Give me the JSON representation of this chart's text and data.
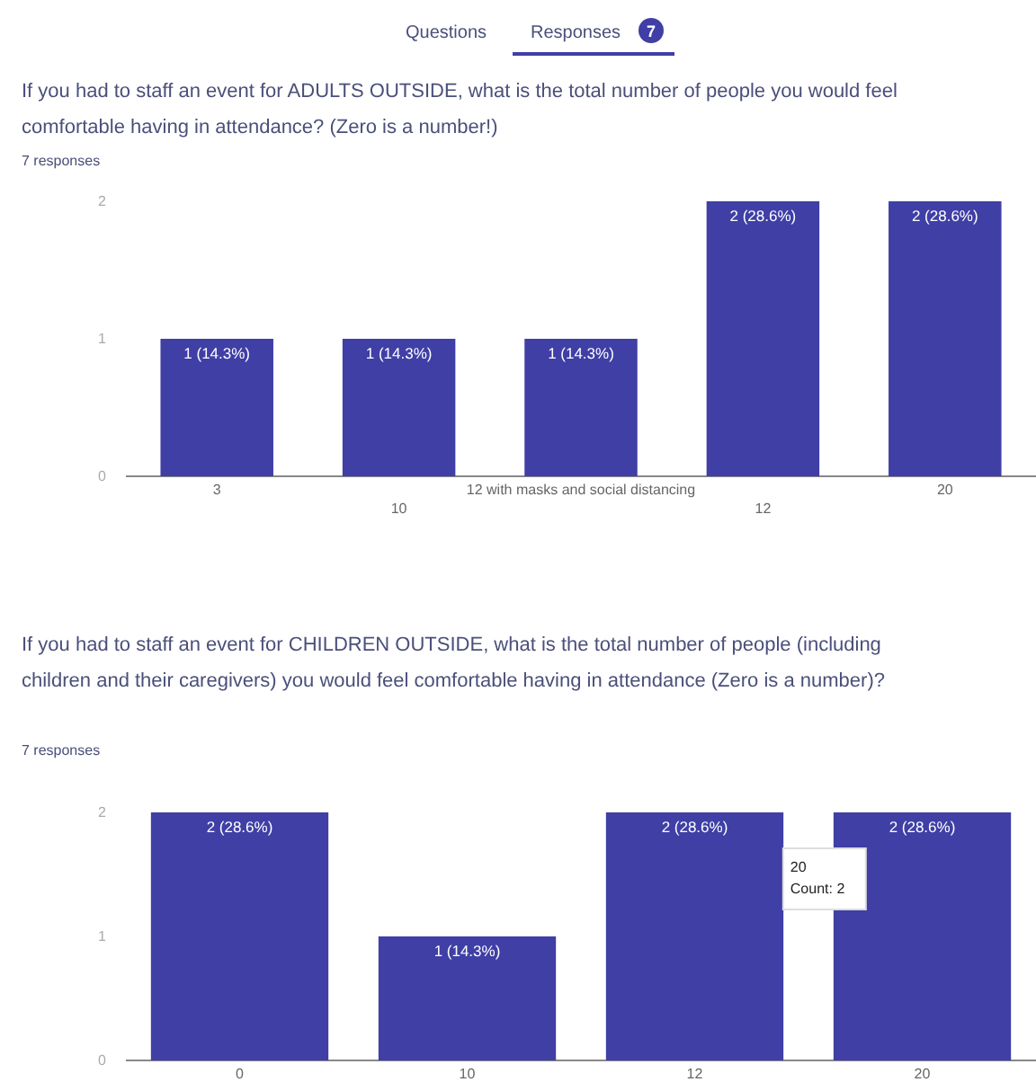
{
  "chart_data": [
    {
      "type": "bar",
      "title": "If you had to staff an event for ADULTS OUTSIDE, what is the total number of people you would feel comfortable having in attendance? (Zero is a number!)",
      "subtitle": "7 responses",
      "annotations": [
        "Questions",
        "Responses",
        "7"
      ],
      "categories": [
        "3",
        "10",
        "12 with masks and social distancing",
        "12",
        "20"
      ],
      "series": [
        {
          "color": "#3f3fa6",
          "values": [
            1,
            1,
            1,
            2,
            2
          ]
        }
      ],
      "value_labels": [
        "1 (14.3%)",
        "1 (14.3%)",
        "1 (14.3%)",
        "2 (28.6%)",
        "2 (28.6%)"
      ],
      "ylim": [
        0,
        2
      ],
      "yticks": [
        0,
        1,
        2
      ],
      "grid": false
    },
    {
      "type": "bar",
      "title": "If you had to staff an event for CHILDREN OUTSIDE, what is the total number of people (including children and their caregivers) you would feel comfortable having in attendance (Zero is a number)?",
      "subtitle": "7 responses",
      "annotations": [
        "20",
        "Count: 2"
      ],
      "categories": [
        "0",
        "10",
        "12",
        "20"
      ],
      "series": [
        {
          "color": "#3f3fa6",
          "values": [
            2,
            1,
            2,
            2
          ]
        }
      ],
      "value_labels": [
        "2 (28.6%)",
        "1 (14.3%)",
        "2 (28.6%)",
        "2 (28.6%)"
      ],
      "ylim": [
        0,
        2
      ],
      "yticks": [
        0,
        1,
        2
      ],
      "grid": false
    }
  ]
}
